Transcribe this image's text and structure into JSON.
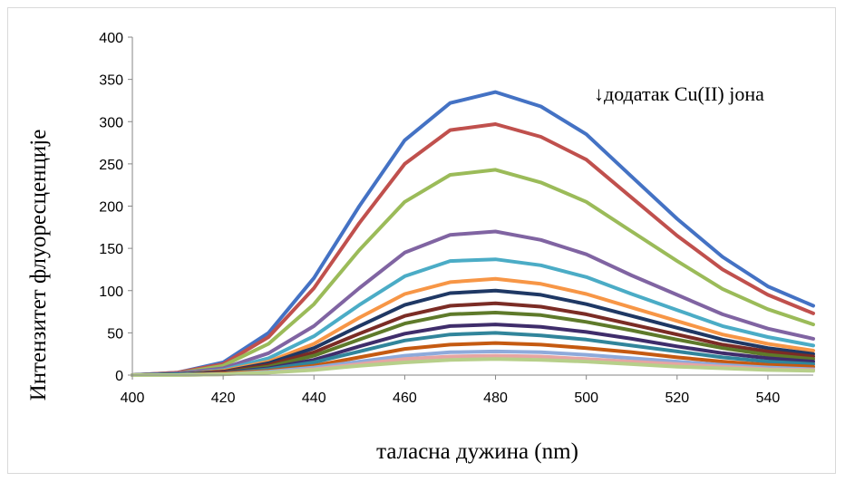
{
  "chart_data": {
    "type": "line",
    "title": "",
    "xlabel": "таласна дужина (nm)",
    "ylabel": "Интензитет флуоресценције",
    "annotation": "↓додатак Cu(II) јона",
    "xlim": [
      400,
      550
    ],
    "ylim": [
      0,
      400
    ],
    "xticks": [
      400,
      420,
      440,
      460,
      480,
      500,
      520,
      540
    ],
    "yticks": [
      0,
      50,
      100,
      150,
      200,
      250,
      300,
      350,
      400
    ],
    "grid": false,
    "legend": "none",
    "x": [
      400,
      410,
      420,
      430,
      440,
      450,
      460,
      470,
      480,
      490,
      500,
      510,
      520,
      530,
      540,
      550
    ],
    "series": [
      {
        "color": "#4472c4",
        "values": [
          0,
          3,
          15,
          50,
          115,
          200,
          278,
          322,
          335,
          318,
          285,
          235,
          185,
          140,
          105,
          82
        ]
      },
      {
        "color": "#c0504d",
        "values": [
          0,
          3,
          13,
          45,
          103,
          180,
          250,
          290,
          297,
          282,
          255,
          210,
          165,
          125,
          95,
          73
        ]
      },
      {
        "color": "#9bbb59",
        "values": [
          0,
          2,
          11,
          37,
          84,
          148,
          205,
          237,
          243,
          228,
          205,
          170,
          135,
          102,
          78,
          60
        ]
      },
      {
        "color": "#8064a2",
        "values": [
          0,
          2,
          8,
          26,
          58,
          103,
          145,
          166,
          170,
          160,
          143,
          118,
          95,
          72,
          55,
          43
        ]
      },
      {
        "color": "#4bacc6",
        "values": [
          0,
          1,
          6,
          20,
          46,
          83,
          117,
          135,
          137,
          130,
          116,
          96,
          77,
          58,
          45,
          35
        ]
      },
      {
        "color": "#f79646",
        "values": [
          0,
          1,
          5,
          16,
          37,
          68,
          96,
          110,
          114,
          108,
          96,
          80,
          64,
          48,
          37,
          29
        ]
      },
      {
        "color": "#1f3864",
        "values": [
          0,
          1,
          4,
          14,
          32,
          58,
          83,
          97,
          100,
          95,
          84,
          70,
          56,
          42,
          32,
          25
        ]
      },
      {
        "color": "#7b2c25",
        "values": [
          0,
          1,
          4,
          12,
          27,
          49,
          70,
          82,
          85,
          81,
          72,
          60,
          48,
          36,
          28,
          22
        ]
      },
      {
        "color": "#5e7a2a",
        "values": [
          0,
          1,
          3,
          10,
          23,
          42,
          61,
          72,
          74,
          71,
          63,
          53,
          42,
          32,
          24,
          19
        ]
      },
      {
        "color": "#3f2d6b",
        "values": [
          0,
          1,
          3,
          8,
          18,
          34,
          49,
          58,
          60,
          57,
          51,
          43,
          34,
          26,
          20,
          16
        ]
      },
      {
        "color": "#31859b",
        "values": [
          0,
          1,
          2,
          7,
          15,
          28,
          41,
          48,
          50,
          47,
          42,
          35,
          28,
          21,
          16,
          13
        ]
      },
      {
        "color": "#c55a11",
        "values": [
          0,
          0,
          2,
          5,
          11,
          21,
          31,
          36,
          38,
          36,
          32,
          27,
          21,
          16,
          12,
          10
        ]
      },
      {
        "color": "#8eaadb",
        "values": [
          0,
          0,
          1,
          4,
          9,
          16,
          23,
          27,
          28,
          27,
          24,
          20,
          16,
          12,
          9,
          7
        ]
      },
      {
        "color": "#e6a5a3",
        "values": [
          0,
          0,
          1,
          3,
          7,
          13,
          19,
          22,
          23,
          22,
          19,
          16,
          13,
          10,
          7,
          6
        ]
      },
      {
        "color": "#b7cf8a",
        "values": [
          0,
          0,
          1,
          3,
          6,
          11,
          15,
          18,
          19,
          18,
          16,
          13,
          10,
          8,
          6,
          5
        ]
      }
    ]
  }
}
